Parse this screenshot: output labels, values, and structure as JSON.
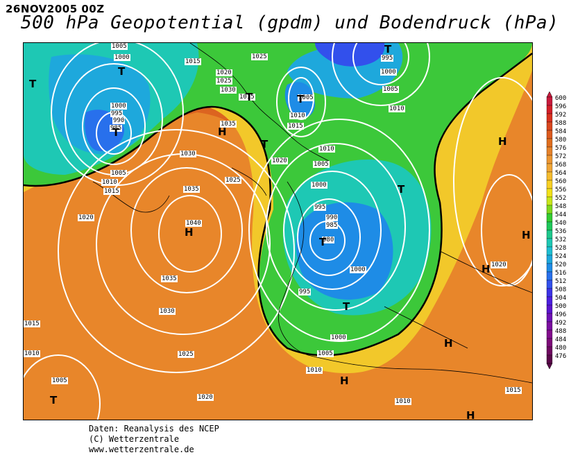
{
  "header": {
    "date": "26NOV2005 00Z",
    "title": "500 hPa Geopotential (gpdm) und Bodendruck (hPa)"
  },
  "map": {
    "pressure_labels": [
      "1005",
      "1000",
      "995",
      "990",
      "985",
      "1015",
      "1020",
      "1025",
      "1030",
      "1035",
      "1040",
      "1010"
    ],
    "highs": [
      "H",
      "H",
      "H",
      "H",
      "H",
      "H",
      "H",
      "H"
    ],
    "lows": [
      "T",
      "T",
      "T",
      "T",
      "T",
      "T",
      "T",
      "T",
      "T",
      "T",
      "T"
    ]
  },
  "legend": {
    "values": [
      "600",
      "596",
      "592",
      "588",
      "584",
      "580",
      "576",
      "572",
      "568",
      "564",
      "560",
      "556",
      "552",
      "548",
      "544",
      "540",
      "536",
      "532",
      "528",
      "524",
      "520",
      "516",
      "512",
      "508",
      "504",
      "500",
      "496",
      "492",
      "488",
      "484",
      "480",
      "476"
    ],
    "colors": [
      "#c81a3c",
      "#d21e28",
      "#d8301e",
      "#d9461e",
      "#dc5a1e",
      "#e06e1e",
      "#e5822a",
      "#ec9632",
      "#f0a536",
      "#f5bc2e",
      "#f8d024",
      "#f2e21a",
      "#c8e61a",
      "#7ed81e",
      "#32cc32",
      "#1ec85a",
      "#1ec88c",
      "#1ec8b4",
      "#1ebed2",
      "#1ea8dc",
      "#1e8ce6",
      "#2870ec",
      "#3250ec",
      "#3c32e6",
      "#4b1ede",
      "#5a14cc",
      "#6e10b4",
      "#7a0ea0",
      "#820c8c",
      "#7c0a78",
      "#6e0860",
      "#5a064a"
    ]
  },
  "credits": {
    "line1": "Daten: Reanalysis des NCEP",
    "line2": "(C) Wetterzentrale",
    "line3": "www.wetterzentrale.de"
  }
}
